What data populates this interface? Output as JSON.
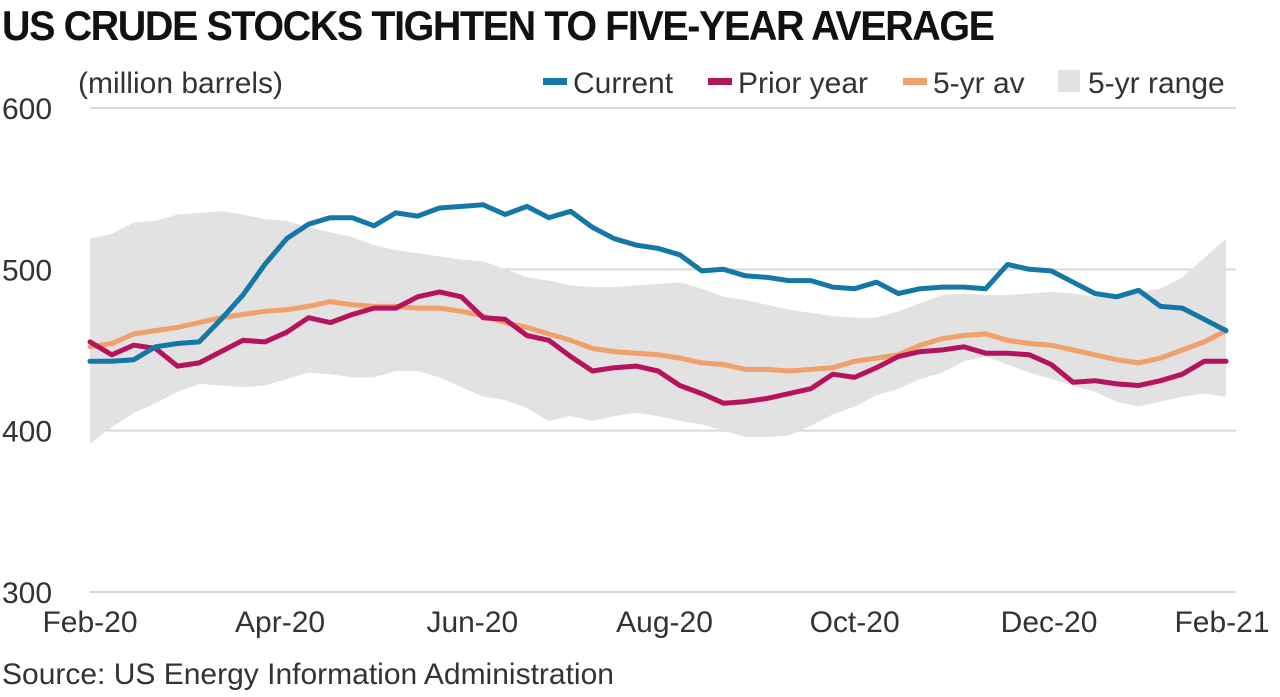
{
  "title": "US CRUDE STOCKS TIGHTEN TO FIVE-YEAR AVERAGE",
  "source": "Source: US Energy Information Administration",
  "colors": {
    "current": "#1577a5",
    "prior_year": "#b5135e",
    "avg": "#f0a06a",
    "range": "#e2e2e2",
    "grid": "#d9d9d9",
    "text": "#333333"
  },
  "chart_data": {
    "type": "line",
    "ylabel": "(million barrels)",
    "ylim": [
      300,
      600
    ],
    "yticks": [
      300,
      400,
      500,
      600
    ],
    "xlim": [
      0,
      52
    ],
    "xticks": [
      {
        "x": 0,
        "label": "Feb-20"
      },
      {
        "x": 8.7,
        "label": "Apr-20"
      },
      {
        "x": 17.5,
        "label": "Jun-20"
      },
      {
        "x": 26.3,
        "label": "Aug-20"
      },
      {
        "x": 35,
        "label": "Oct-20"
      },
      {
        "x": 43.9,
        "label": "Dec-20"
      },
      {
        "x": 52.6,
        "label": "Feb-21"
      }
    ],
    "legend_position": "top-right",
    "legend": [
      {
        "key": "current",
        "label": "Current"
      },
      {
        "key": "prior_year",
        "label": "Prior year"
      },
      {
        "key": "avg",
        "label": "5-yr av"
      },
      {
        "key": "range",
        "label": "5-yr range"
      }
    ],
    "x": [
      0,
      1,
      2,
      3,
      4,
      5,
      6,
      7,
      8,
      9,
      10,
      11,
      12,
      13,
      14,
      15,
      16,
      17,
      18,
      19,
      20,
      21,
      22,
      23,
      24,
      25,
      26,
      27,
      28,
      29,
      30,
      31,
      32,
      33,
      34,
      35,
      36,
      37,
      38,
      39,
      40,
      41,
      42,
      43,
      44,
      45,
      46,
      47,
      48,
      49,
      50,
      51,
      52
    ],
    "series": [
      {
        "key": "current",
        "name": "Current",
        "values": [
          443,
          443,
          444,
          452,
          454,
          455,
          469,
          484,
          503,
          519,
          528,
          532,
          532,
          527,
          535,
          533,
          538,
          539,
          540,
          534,
          539,
          532,
          536,
          526,
          519,
          515,
          513,
          509,
          499,
          500,
          496,
          495,
          493,
          493,
          489,
          488,
          492,
          485,
          488,
          489,
          489,
          488,
          503,
          500,
          499,
          492,
          485,
          483,
          487,
          477,
          476,
          469,
          462
        ]
      },
      {
        "key": "prior_year",
        "name": "Prior year",
        "values": [
          455,
          447,
          453,
          451,
          440,
          442,
          449,
          456,
          455,
          461,
          470,
          467,
          472,
          476,
          476,
          483,
          486,
          483,
          470,
          469,
          459,
          456,
          446,
          437,
          439,
          440,
          437,
          428,
          423,
          417,
          418,
          420,
          423,
          426,
          435,
          433,
          439,
          446,
          449,
          450,
          452,
          448,
          448,
          447,
          441,
          430,
          431,
          429,
          428,
          431,
          435,
          443,
          443
        ]
      },
      {
        "key": "avg",
        "name": "5-yr av",
        "values": [
          452,
          454,
          460,
          462,
          464,
          467,
          470,
          472,
          474,
          475,
          477,
          480,
          478,
          477,
          477,
          476,
          476,
          474,
          471,
          467,
          464,
          460,
          456,
          451,
          449,
          448,
          447,
          445,
          442,
          441,
          438,
          438,
          437,
          438,
          439,
          443,
          445,
          447,
          453,
          457,
          459,
          460,
          456,
          454,
          453,
          450,
          447,
          444,
          442,
          445,
          450,
          455,
          462
        ]
      },
      {
        "key": "range",
        "name": "5-yr range",
        "upper": [
          519,
          522,
          529,
          530,
          534,
          535,
          536,
          534,
          531,
          530,
          526,
          523,
          520,
          515,
          512,
          510,
          508,
          506,
          505,
          500,
          495,
          493,
          490,
          489,
          489,
          490,
          491,
          492,
          488,
          483,
          481,
          478,
          475,
          473,
          471,
          470,
          470,
          474,
          479,
          484,
          485,
          484,
          484,
          485,
          486,
          485,
          483,
          484,
          486,
          488,
          495,
          507,
          519
        ],
        "lower": [
          392,
          402,
          411,
          417,
          424,
          429,
          428,
          427,
          428,
          432,
          436,
          435,
          433,
          433,
          437,
          437,
          433,
          427,
          421,
          419,
          414,
          406,
          409,
          406,
          409,
          411,
          409,
          406,
          404,
          400,
          396,
          396,
          397,
          403,
          410,
          415,
          422,
          426,
          432,
          436,
          443,
          446,
          441,
          436,
          432,
          428,
          424,
          418,
          415,
          418,
          421,
          423,
          421
        ]
      }
    ]
  }
}
